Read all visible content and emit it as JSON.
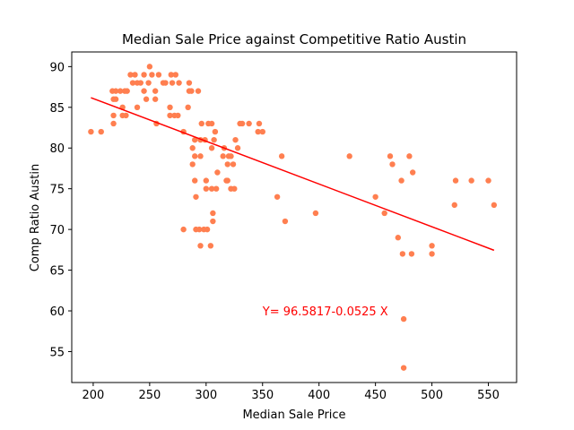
{
  "chart_data": {
    "type": "scatter",
    "title": "Median Sale Price against Competitive Ratio Austin",
    "xlabel": "Median Sale Price",
    "ylabel": "Comp Ratio Austin",
    "xlim": [
      181,
      575
    ],
    "ylim": [
      51.2,
      91.8
    ],
    "xticks": [
      200,
      250,
      300,
      350,
      400,
      450,
      500,
      550
    ],
    "yticks": [
      55,
      60,
      65,
      70,
      75,
      80,
      85,
      90
    ],
    "grid": false,
    "legend": "none",
    "colors": {
      "points": "#ff7f50",
      "fit_line": "#ff0000"
    },
    "annotation": {
      "text": "Y=  96.5817-0.0525 X",
      "x": 350,
      "y": 60
    },
    "fit_line": {
      "intercept": 96.5817,
      "slope": -0.0525,
      "x_range": [
        198,
        555
      ]
    },
    "points": [
      [
        198,
        82
      ],
      [
        207,
        82
      ],
      [
        217,
        87
      ],
      [
        218,
        86
      ],
      [
        218,
        84
      ],
      [
        218,
        83
      ],
      [
        220,
        87
      ],
      [
        220,
        86
      ],
      [
        224,
        87
      ],
      [
        226,
        85
      ],
      [
        226,
        84
      ],
      [
        228,
        87
      ],
      [
        229,
        84
      ],
      [
        230,
        87
      ],
      [
        233,
        89
      ],
      [
        235,
        88
      ],
      [
        237,
        89
      ],
      [
        239,
        88
      ],
      [
        239,
        85
      ],
      [
        242,
        88
      ],
      [
        245,
        87
      ],
      [
        245,
        89
      ],
      [
        247,
        86
      ],
      [
        249,
        88
      ],
      [
        250,
        90
      ],
      [
        252,
        89
      ],
      [
        255,
        87
      ],
      [
        255,
        86
      ],
      [
        256,
        83
      ],
      [
        258,
        89
      ],
      [
        262,
        88
      ],
      [
        264,
        88
      ],
      [
        268,
        85
      ],
      [
        268,
        84
      ],
      [
        269,
        89
      ],
      [
        270,
        88
      ],
      [
        272,
        84
      ],
      [
        273,
        89
      ],
      [
        275,
        84
      ],
      [
        276,
        88
      ],
      [
        280,
        82
      ],
      [
        280,
        70
      ],
      [
        284,
        85
      ],
      [
        285,
        88
      ],
      [
        285,
        87
      ],
      [
        287,
        87
      ],
      [
        288,
        80
      ],
      [
        288,
        78
      ],
      [
        290,
        81
      ],
      [
        290,
        79
      ],
      [
        290,
        76
      ],
      [
        291,
        74
      ],
      [
        291,
        70
      ],
      [
        293,
        87
      ],
      [
        294,
        70
      ],
      [
        295,
        81
      ],
      [
        295,
        79
      ],
      [
        295,
        68
      ],
      [
        296,
        83
      ],
      [
        298,
        70
      ],
      [
        299,
        81
      ],
      [
        300,
        76
      ],
      [
        300,
        75
      ],
      [
        301,
        70
      ],
      [
        302,
        83
      ],
      [
        304,
        68
      ],
      [
        305,
        80
      ],
      [
        305,
        75
      ],
      [
        305,
        83
      ],
      [
        306,
        72
      ],
      [
        306,
        71
      ],
      [
        307,
        81
      ],
      [
        308,
        82
      ],
      [
        309,
        75
      ],
      [
        310,
        77
      ],
      [
        315,
        79
      ],
      [
        316,
        80
      ],
      [
        318,
        76
      ],
      [
        319,
        76
      ],
      [
        319,
        78
      ],
      [
        320,
        79
      ],
      [
        322,
        75
      ],
      [
        322,
        79
      ],
      [
        324,
        78
      ],
      [
        325,
        75
      ],
      [
        326,
        81
      ],
      [
        328,
        80
      ],
      [
        330,
        83
      ],
      [
        332,
        83
      ],
      [
        338,
        83
      ],
      [
        346,
        82
      ],
      [
        347,
        83
      ],
      [
        350,
        82
      ],
      [
        363,
        74
      ],
      [
        367,
        79
      ],
      [
        370,
        71
      ],
      [
        397,
        72
      ],
      [
        427,
        79
      ],
      [
        450,
        74
      ],
      [
        458,
        72
      ],
      [
        463,
        79
      ],
      [
        465,
        78
      ],
      [
        470,
        69
      ],
      [
        473,
        76
      ],
      [
        474,
        67
      ],
      [
        475,
        59
      ],
      [
        475,
        53
      ],
      [
        480,
        79
      ],
      [
        482,
        67
      ],
      [
        483,
        77
      ],
      [
        500,
        68
      ],
      [
        500,
        67
      ],
      [
        520,
        73
      ],
      [
        521,
        76
      ],
      [
        535,
        76
      ],
      [
        550,
        76
      ],
      [
        555,
        73
      ]
    ]
  }
}
